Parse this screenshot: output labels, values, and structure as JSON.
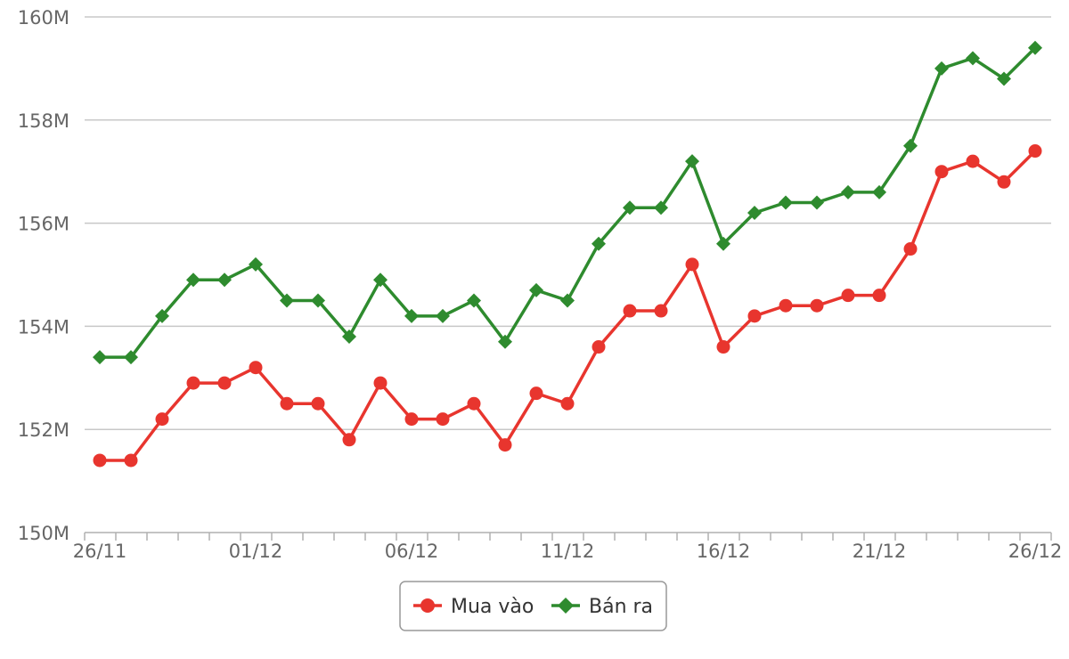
{
  "chart_data": {
    "type": "line",
    "title": "",
    "xlabel": "",
    "ylabel": "",
    "x": [
      "26/11",
      "27/11",
      "28/11",
      "29/11",
      "30/11",
      "01/12",
      "02/12",
      "03/12",
      "04/12",
      "05/12",
      "06/12",
      "07/12",
      "08/12",
      "09/12",
      "10/12",
      "11/12",
      "12/12",
      "13/12",
      "14/12",
      "15/12",
      "16/12",
      "17/12",
      "18/12",
      "19/12",
      "20/12",
      "21/12",
      "22/12",
      "23/12",
      "24/12",
      "25/12",
      "26/12"
    ],
    "x_tick_labels": [
      "26/11",
      "01/12",
      "06/12",
      "11/12",
      "16/12",
      "21/12",
      "26/12"
    ],
    "y_tick_labels": [
      "150M",
      "152M",
      "154M",
      "156M",
      "158M",
      "160M"
    ],
    "ylim": [
      150,
      160
    ],
    "y_unit": "M",
    "grid": true,
    "legend_position": "bottom-center",
    "series": [
      {
        "name": "Mua vào",
        "color": "#e8352e",
        "marker": "circle",
        "values": [
          151.4,
          151.4,
          152.2,
          152.9,
          152.9,
          153.2,
          152.5,
          152.5,
          151.8,
          152.9,
          152.2,
          152.2,
          152.5,
          151.7,
          152.7,
          152.5,
          153.6,
          154.3,
          154.3,
          155.2,
          153.6,
          154.2,
          154.4,
          154.4,
          154.6,
          154.6,
          155.5,
          157.0,
          157.2,
          156.8,
          157.4
        ]
      },
      {
        "name": "Bán ra",
        "color": "#2e8b2e",
        "marker": "diamond",
        "values": [
          153.4,
          153.4,
          154.2,
          154.9,
          154.9,
          155.2,
          154.5,
          154.5,
          153.8,
          154.9,
          154.2,
          154.2,
          154.5,
          153.7,
          154.7,
          154.5,
          155.6,
          156.3,
          156.3,
          157.2,
          155.6,
          156.2,
          156.4,
          156.4,
          156.6,
          156.6,
          157.5,
          159.0,
          159.2,
          158.8,
          159.4
        ]
      }
    ]
  }
}
